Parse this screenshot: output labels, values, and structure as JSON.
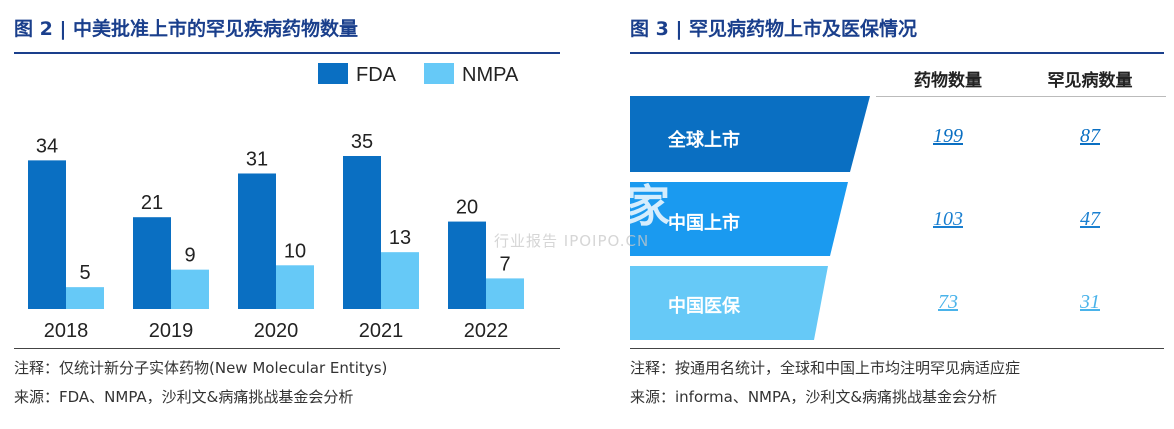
{
  "left": {
    "title": "图 2 | 中美批准上市的罕见疾病药物数量",
    "note": "注释：仅统计新分子实体药物(New Molecular Entitys)",
    "source": "来源：FDA、NMPA，沙利文&病痛挑战基金会分析"
  },
  "right": {
    "title": "图 3 | 罕见病药物上市及医保情况",
    "headers": [
      "药物数量",
      "罕见病数量"
    ],
    "rows": [
      {
        "label": "全球上市",
        "drugs": "199",
        "diseases": "87",
        "color": "#0a6fc2"
      },
      {
        "label": "中国上市",
        "drugs": "103",
        "diseases": "47",
        "color": "#1a9af0"
      },
      {
        "label": "中国医保",
        "drugs": "73",
        "diseases": "31",
        "color": "#66c9f7"
      }
    ],
    "note": "注释：按通用名统计，全球和中国上市均注明罕见病适应症",
    "source": "来源：informa、NMPA，沙利文&病痛挑战基金会分析"
  },
  "watermark": {
    "main": "小并购家",
    "sub": "行业报告 IPOIPO.CN"
  },
  "chart_data": {
    "type": "bar",
    "title": "图 2 | 中美批准上市的罕见疾病药物数量",
    "categories": [
      "2018",
      "2019",
      "2020",
      "2021",
      "2022"
    ],
    "series": [
      {
        "name": "FDA",
        "values": [
          34,
          21,
          31,
          35,
          20
        ],
        "color": "#0a6fc2"
      },
      {
        "name": "NMPA",
        "values": [
          5,
          9,
          10,
          13,
          7
        ],
        "color": "#66c9f7"
      }
    ],
    "ylim": [
      0,
      35
    ],
    "legend": "top-right",
    "grid": false
  }
}
